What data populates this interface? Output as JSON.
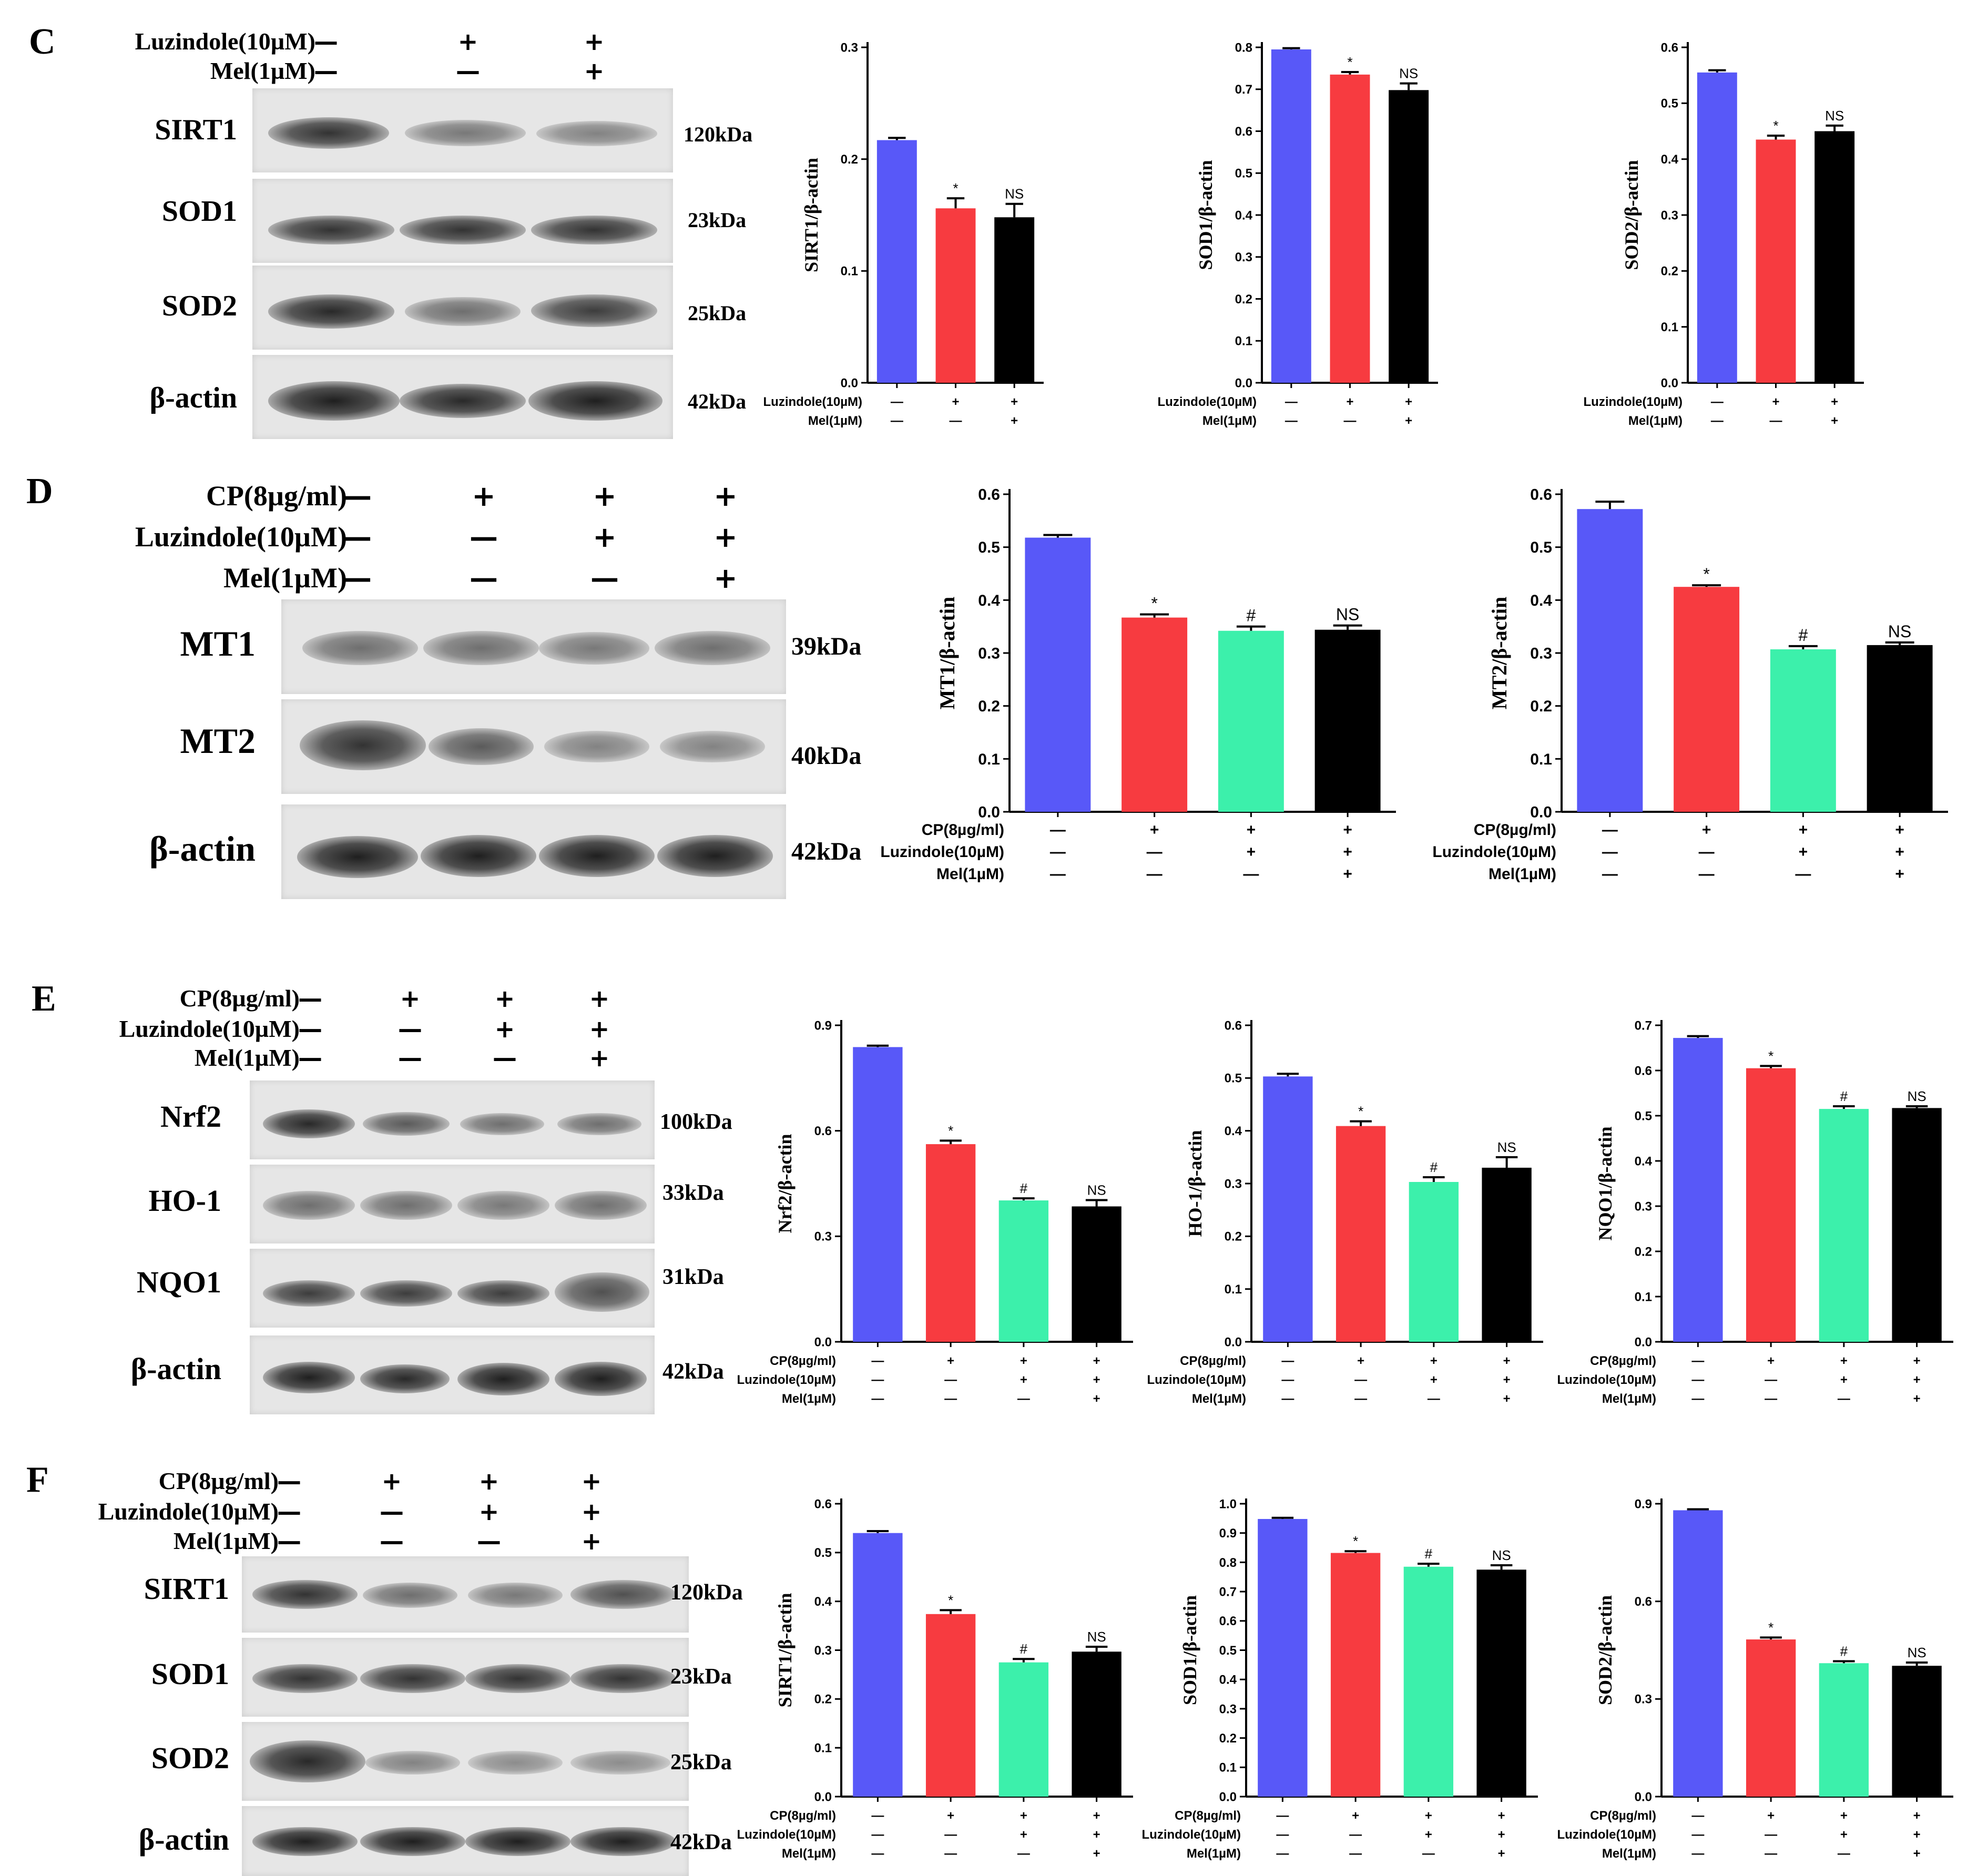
{
  "colors": {
    "ctrl": "#5858f8",
    "cp": "#f73b40",
    "luz": "#3cf0ab",
    "mel": "#000000"
  },
  "panels": [
    {
      "letter": "C",
      "treatments": [
        {
          "label": "Luzindole(10µM)",
          "symbols": [
            "—",
            "+",
            "+"
          ]
        },
        {
          "label": "Mel(1µM)",
          "symbols": [
            "—",
            "—",
            "+"
          ]
        }
      ],
      "proteins": [
        {
          "name": "SIRT1",
          "kda": "120kDa"
        },
        {
          "name": "SOD1",
          "kda": "23kDa"
        },
        {
          "name": "SOD2",
          "kda": "25kDa"
        },
        {
          "name": "β-actin",
          "kda": "42kDa"
        }
      ]
    },
    {
      "letter": "D",
      "treatments": [
        {
          "label": "CP(8µg/ml)",
          "symbols": [
            "—",
            "+",
            "+",
            "+"
          ]
        },
        {
          "label": "Luzindole(10µM)",
          "symbols": [
            "—",
            "—",
            "+",
            "+"
          ]
        },
        {
          "label": "Mel(1µM)",
          "symbols": [
            "—",
            "—",
            "—",
            "+"
          ]
        }
      ],
      "proteins": [
        {
          "name": "MT1",
          "kda": "39kDa"
        },
        {
          "name": "MT2",
          "kda": "40kDa"
        },
        {
          "name": "β-actin",
          "kda": "42kDa"
        }
      ]
    },
    {
      "letter": "E",
      "treatments": [
        {
          "label": "CP(8µg/ml)",
          "symbols": [
            "—",
            "+",
            "+",
            "+"
          ]
        },
        {
          "label": "Luzindole(10µM)",
          "symbols": [
            "—",
            "—",
            "+",
            "+"
          ]
        },
        {
          "label": "Mel(1µM)",
          "symbols": [
            "—",
            "—",
            "—",
            "+"
          ]
        }
      ],
      "proteins": [
        {
          "name": "Nrf2",
          "kda": "100kDa"
        },
        {
          "name": "HO-1",
          "kda": "33kDa"
        },
        {
          "name": "NQO1",
          "kda": "31kDa"
        },
        {
          "name": "β-actin",
          "kda": "42kDa"
        }
      ]
    },
    {
      "letter": "F",
      "treatments": [
        {
          "label": "CP(8µg/ml)",
          "symbols": [
            "—",
            "+",
            "+",
            "+"
          ]
        },
        {
          "label": "Luzindole(10µM)",
          "symbols": [
            "—",
            "—",
            "+",
            "+"
          ]
        },
        {
          "label": "Mel(1µM)",
          "symbols": [
            "—",
            "—",
            "—",
            "+"
          ]
        }
      ],
      "proteins": [
        {
          "name": "SIRT1",
          "kda": "120kDa"
        },
        {
          "name": "SOD1",
          "kda": "23kDa"
        },
        {
          "name": "SOD2",
          "kda": "25kDa"
        },
        {
          "name": "β-actin",
          "kda": "42kDa"
        }
      ]
    }
  ],
  "chart_data": [
    {
      "id": "c1",
      "panel": "C",
      "type": "bar",
      "ylabel": "SIRT1/β-actin",
      "ylim": [
        0,
        0.3
      ],
      "yticks": [
        "0.0",
        "0.1",
        "0.2",
        "0.3"
      ],
      "values": [
        0.217,
        0.156,
        0.148
      ],
      "errors": [
        0.002,
        0.009,
        0.012
      ],
      "annotations": [
        "",
        "*",
        "NS"
      ],
      "colors": [
        "ctrl",
        "cp",
        "mel"
      ],
      "treatments": [
        {
          "label": "Luzindole(10µM)",
          "symbols": [
            "—",
            "+",
            "+"
          ]
        },
        {
          "label": "Mel(1µM)",
          "symbols": [
            "—",
            "—",
            "+"
          ]
        }
      ]
    },
    {
      "id": "c2",
      "panel": "C",
      "type": "bar",
      "ylabel": "SOD1/β-actin",
      "ylim": [
        0,
        0.8
      ],
      "yticks": [
        "0.0",
        "0.1",
        "0.2",
        "0.3",
        "0.4",
        "0.5",
        "0.6",
        "0.7",
        "0.8"
      ],
      "values": [
        0.795,
        0.735,
        0.698
      ],
      "errors": [
        0.003,
        0.006,
        0.016
      ],
      "annotations": [
        "",
        "*",
        "NS"
      ],
      "colors": [
        "ctrl",
        "cp",
        "mel"
      ],
      "treatments": [
        {
          "label": "Luzindole(10µM)",
          "symbols": [
            "—",
            "+",
            "+"
          ]
        },
        {
          "label": "Mel(1µM)",
          "symbols": [
            "—",
            "—",
            "+"
          ]
        }
      ]
    },
    {
      "id": "c3",
      "panel": "C",
      "type": "bar",
      "ylabel": "SOD2/β-actin",
      "ylim": [
        0,
        0.6
      ],
      "yticks": [
        "0.0",
        "0.1",
        "0.2",
        "0.3",
        "0.4",
        "0.5",
        "0.6"
      ],
      "values": [
        0.555,
        0.435,
        0.45
      ],
      "errors": [
        0.004,
        0.007,
        0.01
      ],
      "annotations": [
        "",
        "*",
        "NS"
      ],
      "colors": [
        "ctrl",
        "cp",
        "mel"
      ],
      "treatments": [
        {
          "label": "Luzindole(10µM)",
          "symbols": [
            "—",
            "+",
            "+"
          ]
        },
        {
          "label": "Mel(1µM)",
          "symbols": [
            "—",
            "—",
            "+"
          ]
        }
      ]
    },
    {
      "id": "d1",
      "panel": "D",
      "type": "bar",
      "ylabel": "MT1/β-actin",
      "ylim": [
        0,
        0.6
      ],
      "yticks": [
        "0.0",
        "0.1",
        "0.2",
        "0.3",
        "0.4",
        "0.5",
        "0.6"
      ],
      "values": [
        0.518,
        0.367,
        0.342,
        0.344
      ],
      "errors": [
        0.005,
        0.006,
        0.008,
        0.008
      ],
      "annotations": [
        "",
        "*",
        "#",
        "NS"
      ],
      "colors": [
        "ctrl",
        "cp",
        "luz",
        "mel"
      ],
      "treatments": [
        {
          "label": "CP(8µg/ml)",
          "symbols": [
            "—",
            "+",
            "+",
            "+"
          ]
        },
        {
          "label": "Luzindole(10µM)",
          "symbols": [
            "—",
            "—",
            "+",
            "+"
          ]
        },
        {
          "label": "Mel(1µM)",
          "symbols": [
            "—",
            "—",
            "—",
            "+"
          ]
        }
      ]
    },
    {
      "id": "d2",
      "panel": "D",
      "type": "bar",
      "ylabel": "MT2/β-actin",
      "ylim": [
        0,
        0.6
      ],
      "yticks": [
        "0.0",
        "0.1",
        "0.2",
        "0.3",
        "0.4",
        "0.5",
        "0.6"
      ],
      "values": [
        0.572,
        0.425,
        0.307,
        0.315
      ],
      "errors": [
        0.014,
        0.003,
        0.006,
        0.005
      ],
      "annotations": [
        "",
        "*",
        "#",
        "NS"
      ],
      "colors": [
        "ctrl",
        "cp",
        "luz",
        "mel"
      ],
      "treatments": [
        {
          "label": "CP(8µg/ml)",
          "symbols": [
            "—",
            "+",
            "+",
            "+"
          ]
        },
        {
          "label": "Luzindole(10µM)",
          "symbols": [
            "—",
            "—",
            "+",
            "+"
          ]
        },
        {
          "label": "Mel(1µM)",
          "symbols": [
            "—",
            "—",
            "—",
            "+"
          ]
        }
      ]
    },
    {
      "id": "e1",
      "panel": "E",
      "type": "bar",
      "ylabel": "Nrf2/β-actin",
      "ylim": [
        0,
        0.9
      ],
      "yticks": [
        "0.0",
        "0.3",
        "0.6",
        "0.9"
      ],
      "values": [
        0.838,
        0.562,
        0.402,
        0.385
      ],
      "errors": [
        0.004,
        0.01,
        0.006,
        0.018
      ],
      "annotations": [
        "",
        "*",
        "#",
        "NS"
      ],
      "colors": [
        "ctrl",
        "cp",
        "luz",
        "mel"
      ],
      "treatments": [
        {
          "label": "CP(8µg/ml)",
          "symbols": [
            "—",
            "+",
            "+",
            "+"
          ]
        },
        {
          "label": "Luzindole(10µM)",
          "symbols": [
            "—",
            "—",
            "+",
            "+"
          ]
        },
        {
          "label": "Mel(1µM)",
          "symbols": [
            "—",
            "—",
            "—",
            "+"
          ]
        }
      ]
    },
    {
      "id": "e2",
      "panel": "E",
      "type": "bar",
      "ylabel": "HO-1/β-actin",
      "ylim": [
        0,
        0.6
      ],
      "yticks": [
        "0.0",
        "0.1",
        "0.2",
        "0.3",
        "0.4",
        "0.5",
        "0.6"
      ],
      "values": [
        0.503,
        0.409,
        0.303,
        0.33
      ],
      "errors": [
        0.005,
        0.009,
        0.009,
        0.02
      ],
      "annotations": [
        "",
        "*",
        "#",
        "NS"
      ],
      "colors": [
        "ctrl",
        "cp",
        "luz",
        "mel"
      ],
      "treatments": [
        {
          "label": "CP(8µg/ml)",
          "symbols": [
            "—",
            "+",
            "+",
            "+"
          ]
        },
        {
          "label": "Luzindole(10µM)",
          "symbols": [
            "—",
            "—",
            "+",
            "+"
          ]
        },
        {
          "label": "Mel(1µM)",
          "symbols": [
            "—",
            "—",
            "—",
            "+"
          ]
        }
      ]
    },
    {
      "id": "e3",
      "panel": "E",
      "type": "bar",
      "ylabel": "NQO1/β-actin",
      "ylim": [
        0,
        0.7
      ],
      "yticks": [
        "0.0",
        "0.1",
        "0.2",
        "0.3",
        "0.4",
        "0.5",
        "0.6",
        "0.7"
      ],
      "values": [
        0.672,
        0.605,
        0.515,
        0.517
      ],
      "errors": [
        0.004,
        0.005,
        0.006,
        0.004
      ],
      "annotations": [
        "",
        "*",
        "#",
        "NS"
      ],
      "colors": [
        "ctrl",
        "cp",
        "luz",
        "mel"
      ],
      "treatments": [
        {
          "label": "CP(8µg/ml)",
          "symbols": [
            "—",
            "+",
            "+",
            "+"
          ]
        },
        {
          "label": "Luzindole(10µM)",
          "symbols": [
            "—",
            "—",
            "+",
            "+"
          ]
        },
        {
          "label": "Mel(1µM)",
          "symbols": [
            "—",
            "—",
            "—",
            "+"
          ]
        }
      ]
    },
    {
      "id": "f1",
      "panel": "F",
      "type": "bar",
      "ylabel": "SIRT1/β-actin",
      "ylim": [
        0,
        0.6
      ],
      "yticks": [
        "0.0",
        "0.1",
        "0.2",
        "0.3",
        "0.4",
        "0.5",
        "0.6"
      ],
      "values": [
        0.54,
        0.374,
        0.275,
        0.297
      ],
      "errors": [
        0.004,
        0.008,
        0.007,
        0.01
      ],
      "annotations": [
        "",
        "*",
        "#",
        "NS"
      ],
      "colors": [
        "ctrl",
        "cp",
        "luz",
        "mel"
      ],
      "treatments": [
        {
          "label": "CP(8µg/ml)",
          "symbols": [
            "—",
            "+",
            "+",
            "+"
          ]
        },
        {
          "label": "Luzindole(10µM)",
          "symbols": [
            "—",
            "—",
            "+",
            "+"
          ]
        },
        {
          "label": "Mel(1µM)",
          "symbols": [
            "—",
            "—",
            "—",
            "+"
          ]
        }
      ]
    },
    {
      "id": "f2",
      "panel": "F",
      "type": "bar",
      "ylabel": "SOD1/β-actin",
      "ylim": [
        0,
        1.0
      ],
      "yticks": [
        "0.0",
        "0.1",
        "0.2",
        "0.3",
        "0.4",
        "0.5",
        "0.6",
        "0.7",
        "0.8",
        "0.9",
        "1.0"
      ],
      "values": [
        0.948,
        0.832,
        0.785,
        0.775
      ],
      "errors": [
        0.004,
        0.006,
        0.01,
        0.015
      ],
      "annotations": [
        "",
        "*",
        "#",
        "NS"
      ],
      "colors": [
        "ctrl",
        "cp",
        "luz",
        "mel"
      ],
      "treatments": [
        {
          "label": "CP(8µg/ml)",
          "symbols": [
            "—",
            "+",
            "+",
            "+"
          ]
        },
        {
          "label": "Luzindole(10µM)",
          "symbols": [
            "—",
            "—",
            "+",
            "+"
          ]
        },
        {
          "label": "Mel(1µM)",
          "symbols": [
            "—",
            "—",
            "—",
            "+"
          ]
        }
      ]
    },
    {
      "id": "f3",
      "panel": "F",
      "type": "bar",
      "ylabel": "SOD2/β-actin",
      "ylim": [
        0,
        0.9
      ],
      "yticks": [
        "0.0",
        "0.3",
        "0.6",
        "0.9"
      ],
      "values": [
        0.88,
        0.483,
        0.41,
        0.402
      ],
      "errors": [
        0.003,
        0.006,
        0.006,
        0.01
      ],
      "annotations": [
        "",
        "*",
        "#",
        "NS"
      ],
      "colors": [
        "ctrl",
        "cp",
        "luz",
        "mel"
      ],
      "treatments": [
        {
          "label": "CP(8µg/ml)",
          "symbols": [
            "—",
            "+",
            "+",
            "+"
          ]
        },
        {
          "label": "Luzindole(10µM)",
          "symbols": [
            "—",
            "—",
            "+",
            "+"
          ]
        },
        {
          "label": "Mel(1µM)",
          "symbols": [
            "—",
            "—",
            "—",
            "+"
          ]
        }
      ]
    }
  ]
}
